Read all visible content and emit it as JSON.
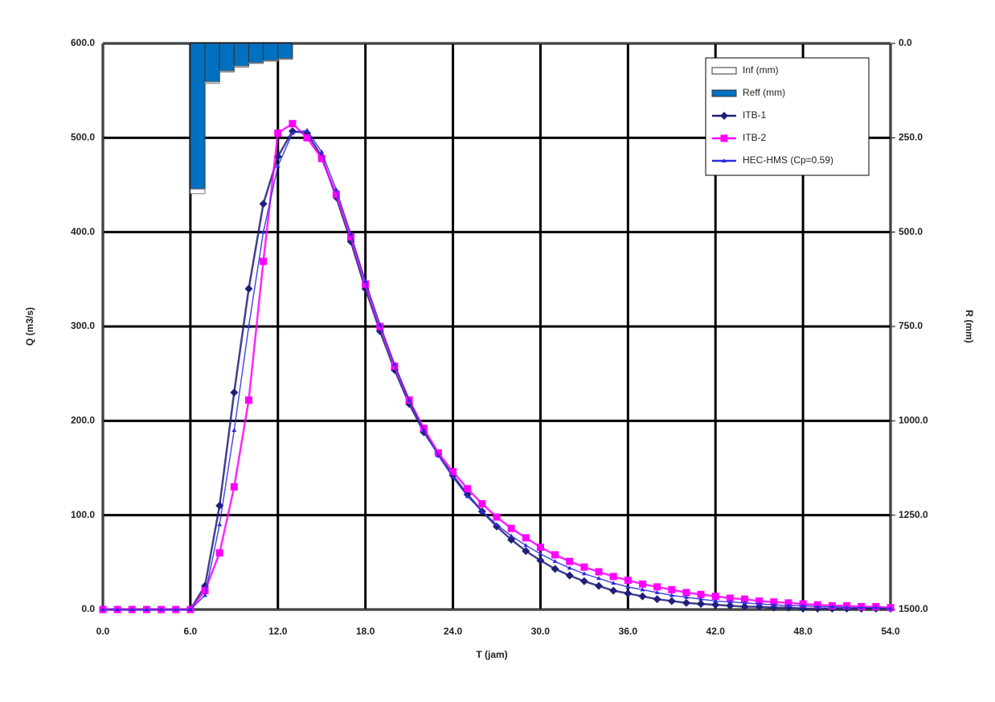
{
  "chart_data": {
    "type": "line",
    "x_label": "T (jam)",
    "y_label": "Q (m3/s)",
    "y2_label": "R (mm)",
    "xlim": [
      0,
      54
    ],
    "xticks": [
      {
        "value": 0,
        "label": "0.0"
      },
      {
        "value": 6,
        "label": "6.0"
      },
      {
        "value": 12,
        "label": "12.0"
      },
      {
        "value": 18,
        "label": "18.0"
      },
      {
        "value": 24,
        "label": "24.0"
      },
      {
        "value": 30,
        "label": "30.0"
      },
      {
        "value": 36,
        "label": "36.0"
      },
      {
        "value": 42,
        "label": "42.0"
      },
      {
        "value": 48,
        "label": "48.0"
      },
      {
        "value": 54,
        "label": "54.0"
      }
    ],
    "ylim": [
      0,
      600
    ],
    "yticks": [
      {
        "value": 0,
        "label": "0.0"
      },
      {
        "value": 100,
        "label": "100.0"
      },
      {
        "value": 200,
        "label": "200.0"
      },
      {
        "value": 300,
        "label": "300.0"
      },
      {
        "value": 400,
        "label": "400.0"
      },
      {
        "value": 500,
        "label": "500.0"
      },
      {
        "value": 600,
        "label": "600.0"
      }
    ],
    "y2lim": [
      1500,
      0
    ],
    "y2ticks": [
      {
        "value": 0,
        "label": "0.0"
      },
      {
        "value": 250,
        "label": "250.0"
      },
      {
        "value": 500,
        "label": "500.0"
      },
      {
        "value": 750,
        "label": "750.0"
      },
      {
        "value": 1000,
        "label": "1000.0"
      },
      {
        "value": 1250,
        "label": "1250.0"
      },
      {
        "value": 1500,
        "label": "1500.0"
      }
    ],
    "grid": true,
    "legend": "top-right",
    "x": [
      0,
      1,
      2,
      3,
      4,
      5,
      6,
      7,
      8,
      9,
      10,
      11,
      12,
      13,
      14,
      15,
      16,
      17,
      18,
      19,
      20,
      21,
      22,
      23,
      24,
      25,
      26,
      27,
      28,
      29,
      30,
      31,
      32,
      33,
      34,
      35,
      36,
      37,
      38,
      39,
      40,
      41,
      42,
      43,
      44,
      45,
      46,
      47,
      48,
      49,
      50,
      51,
      52,
      53,
      54
    ],
    "bars": [
      {
        "name": "Inf (mm)",
        "type": "bar",
        "axis": "y2",
        "color": "#ffffff",
        "x": [
          6,
          7,
          8,
          9,
          10,
          11,
          12
        ],
        "values": [
          12,
          4,
          3,
          3,
          2,
          2,
          2
        ]
      },
      {
        "name": "Reff (mm)",
        "type": "bar",
        "axis": "y2",
        "color": "#0070c0",
        "x": [
          6,
          7,
          8,
          9,
          10,
          11,
          12
        ],
        "values": [
          386,
          102,
          73,
          60,
          51,
          45,
          40
        ]
      }
    ],
    "series": [
      {
        "name": "ITB-1",
        "color": "#1f1f7a",
        "marker": "diamond",
        "values": [
          0,
          0,
          0,
          0,
          0,
          0,
          0,
          25,
          110,
          230,
          340,
          430,
          480,
          507,
          505,
          480,
          437,
          390,
          340,
          295,
          254,
          218,
          188,
          165,
          142,
          122,
          104,
          88,
          74,
          62,
          52,
          43,
          36,
          30,
          25,
          20,
          17,
          14,
          11,
          9,
          7,
          6,
          5,
          4,
          3,
          3,
          2,
          2,
          1,
          1,
          1,
          1,
          1,
          1,
          1
        ]
      },
      {
        "name": "ITB-2",
        "color": "#ff00ff",
        "marker": "square",
        "values": [
          0,
          0,
          0,
          0,
          0,
          0,
          0,
          20,
          60,
          130,
          222,
          369,
          505,
          515,
          500,
          478,
          440,
          395,
          345,
          300,
          258,
          222,
          192,
          166,
          146,
          128,
          112,
          98,
          86,
          76,
          66,
          58,
          51,
          45,
          40,
          35,
          31,
          27,
          24,
          21,
          18,
          16,
          14,
          12,
          11,
          9,
          8,
          7,
          6,
          5,
          4,
          4,
          3,
          3,
          2
        ]
      },
      {
        "name": "HEC-HMS (Cp=0.59)",
        "color": "#2b2bd9",
        "marker": "triangle",
        "values": [
          0,
          0,
          0,
          0,
          0,
          0,
          0,
          15,
          90,
          190,
          300,
          400,
          470,
          505,
          508,
          485,
          445,
          398,
          348,
          302,
          260,
          222,
          190,
          163,
          140,
          120,
          104,
          90,
          78,
          68,
          59,
          51,
          44,
          38,
          33,
          28,
          24,
          21,
          18,
          15,
          13,
          11,
          9,
          8,
          7,
          6,
          5,
          4,
          4,
          3,
          3,
          2,
          2,
          2,
          1
        ]
      }
    ]
  }
}
